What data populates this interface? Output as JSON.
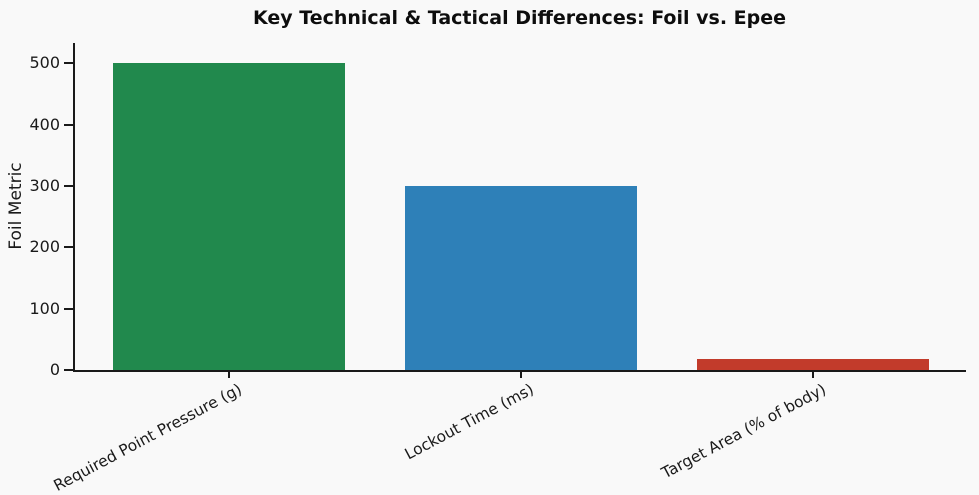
{
  "chart_data": {
    "type": "bar",
    "title": "Key Technical & Tactical Differences: Foil vs. Epee",
    "xlabel": "",
    "ylabel": "Foil Metric",
    "categories": [
      "Required Point Pressure (g)",
      "Lockout Time (ms)",
      "Target Area (% of body)"
    ],
    "values": [
      500,
      300,
      18
    ],
    "bar_colors": [
      "#21894d",
      "#2e80b8",
      "#c23b2b"
    ],
    "yticks": [
      0,
      100,
      200,
      300,
      400,
      500
    ],
    "ylim": [
      0,
      533
    ],
    "grid": false,
    "legend": false,
    "background_color": "#f9f9f9",
    "spine_color": "#1a1a1a",
    "xtick_rotation_deg": 28
  }
}
